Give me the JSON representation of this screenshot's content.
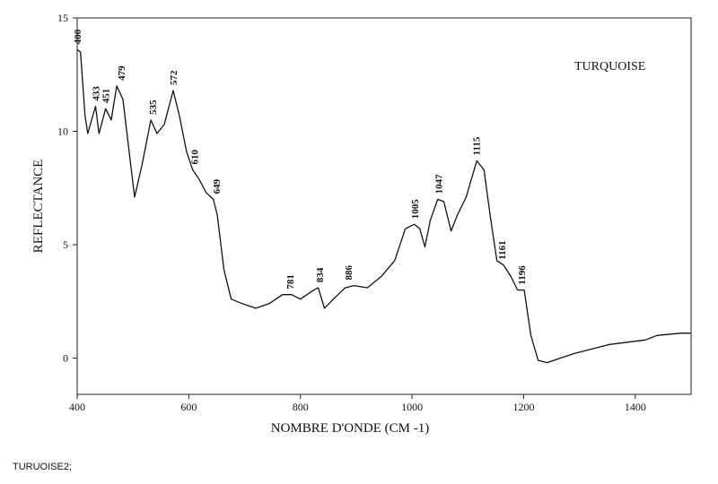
{
  "chart_data": {
    "type": "line",
    "label": "TURQUOISE",
    "x_label": "NOMBRE D'ONDE (CM -1)",
    "y_label": "REFLECTANCE",
    "color": "#111111",
    "x": [
      400,
      406,
      414,
      419,
      427,
      433,
      439,
      451,
      461,
      471,
      482,
      495,
      503,
      516,
      532,
      543,
      556,
      572,
      583,
      596,
      607,
      618,
      631,
      644,
      651,
      663,
      676,
      696,
      720,
      744,
      768,
      784,
      800,
      824,
      832,
      843,
      859,
      880,
      896,
      920,
      945,
      969,
      988,
      1004,
      1014,
      1023,
      1033,
      1046,
      1057,
      1070,
      1081,
      1097,
      1116,
      1129,
      1140,
      1152,
      1164,
      1177,
      1189,
      1201,
      1213,
      1226,
      1242,
      1266,
      1290,
      1322,
      1354,
      1386,
      1418,
      1439,
      1483,
      1499
    ],
    "values": [
      13.6,
      13.5,
      10.7,
      9.9,
      10.6,
      11.1,
      9.9,
      11.0,
      10.5,
      12.0,
      11.4,
      8.7,
      7.1,
      8.5,
      10.5,
      9.9,
      10.3,
      11.8,
      10.7,
      9.1,
      8.3,
      7.9,
      7.3,
      7.0,
      6.3,
      3.9,
      2.6,
      2.4,
      2.2,
      2.4,
      2.8,
      2.8,
      2.6,
      3.0,
      3.1,
      2.2,
      2.6,
      3.1,
      3.2,
      3.1,
      3.6,
      4.3,
      5.7,
      5.9,
      5.7,
      4.9,
      6.1,
      7.0,
      6.9,
      5.6,
      6.3,
      7.1,
      8.7,
      8.3,
      6.3,
      4.3,
      4.1,
      3.6,
      3.0,
      3.0,
      1.0,
      -0.1,
      -0.2,
      0.0,
      0.2,
      0.4,
      0.6,
      0.7,
      0.8,
      1.0,
      1.1,
      1.1
    ],
    "xlim": [
      400,
      1500
    ],
    "ylim": [
      -1.6,
      15
    ],
    "xticks": [
      400,
      600,
      800,
      1000,
      1200,
      1400
    ],
    "yticks": [
      0,
      5,
      10,
      15
    ],
    "grid": false,
    "annotations": [
      {
        "text": "400",
        "x": 400,
        "y": 13.6
      },
      {
        "text": "433",
        "x": 433,
        "y": 11.1
      },
      {
        "text": "451",
        "x": 451,
        "y": 11.0
      },
      {
        "text": "479",
        "x": 479,
        "y": 12.0
      },
      {
        "text": "535",
        "x": 535,
        "y": 10.5
      },
      {
        "text": "572",
        "x": 572,
        "y": 11.8
      },
      {
        "text": "610",
        "x": 610,
        "y": 8.3
      },
      {
        "text": "649",
        "x": 649,
        "y": 7.0
      },
      {
        "text": "781",
        "x": 781,
        "y": 2.8
      },
      {
        "text": "834",
        "x": 834,
        "y": 3.1
      },
      {
        "text": "886",
        "x": 886,
        "y": 3.2
      },
      {
        "text": "1005",
        "x": 1005,
        "y": 5.9
      },
      {
        "text": "1047",
        "x": 1047,
        "y": 7.0
      },
      {
        "text": "1115",
        "x": 1115,
        "y": 8.7
      },
      {
        "text": "1161",
        "x": 1161,
        "y": 4.1
      },
      {
        "text": "1196",
        "x": 1196,
        "y": 3.0
      }
    ]
  },
  "footer": "TURUOISE2;"
}
